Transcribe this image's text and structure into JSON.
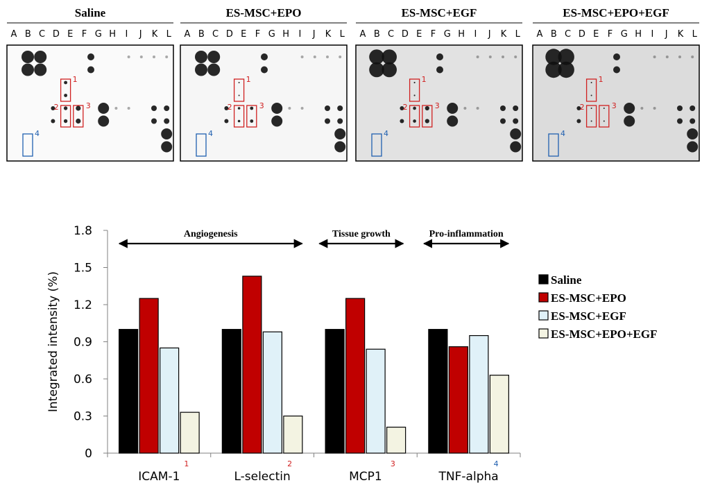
{
  "blots": {
    "panels": [
      {
        "title": "Saline"
      },
      {
        "title": "ES-MSC+EPO"
      },
      {
        "title": "ES-MSC+EGF"
      },
      {
        "title": "ES-MSC+EPO+EGF"
      }
    ],
    "columns": [
      "A",
      "B",
      "C",
      "D",
      "E",
      "F",
      "G",
      "H",
      "I",
      "J",
      "K",
      "L"
    ],
    "box_labels": [
      "1",
      "2",
      "3",
      "4"
    ]
  },
  "chart_data": {
    "type": "bar",
    "y_label": "Integrated intensity (%)",
    "categories": [
      "ICAM-1",
      "L-selectin",
      "MCP1",
      "TNF-alpha"
    ],
    "category_notes": [
      "1",
      "2",
      "3",
      "4"
    ],
    "category_note_colors": [
      "#d02020",
      "#d02020",
      "#d02020",
      "#2060b0"
    ],
    "annotations": [
      "Angiogenesis",
      "Tissue growth",
      "Pro-inflammation"
    ],
    "series": [
      {
        "name": "Saline",
        "color": "#000000",
        "values": [
          1.0,
          1.0,
          1.0,
          1.0
        ]
      },
      {
        "name": "ES-MSC+EPO",
        "color": "#c00000",
        "values": [
          1.25,
          1.43,
          1.25,
          0.86
        ]
      },
      {
        "name": "ES-MSC+EGF",
        "color": "#e0f1f8",
        "values": [
          0.85,
          0.98,
          0.84,
          0.95
        ]
      },
      {
        "name": "ES-MSC+EPO+EGF",
        "color": "#f3f3e2",
        "values": [
          0.33,
          0.3,
          0.21,
          0.63
        ]
      }
    ],
    "ylim": [
      0,
      1.8
    ],
    "yticks": [
      0,
      0.3,
      0.6,
      0.9,
      1.2,
      1.5,
      1.8
    ],
    "grid": false
  }
}
